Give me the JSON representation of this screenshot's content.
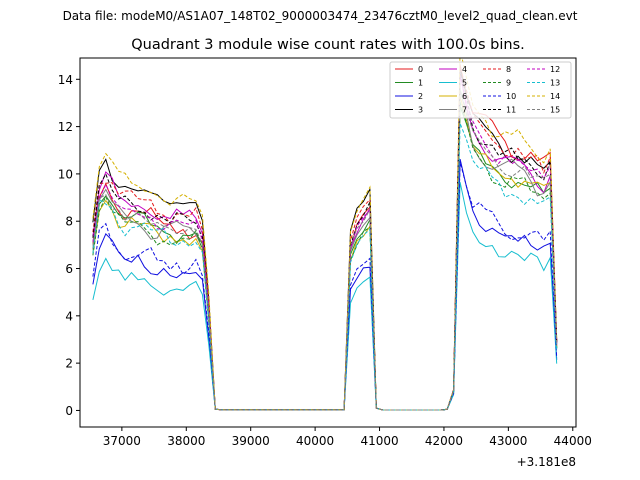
{
  "header": {
    "data_file": "Data file: modeM0/AS1A07_148T02_9000003474_23476cztM0_level2_quad_clean.evt"
  },
  "chart_data": {
    "type": "line",
    "title": "Quadrant 3 module wise count rates with 100.0s bins.",
    "xlabel": "",
    "ylabel": "",
    "x_offset_label": "+3.181e8",
    "xlim": [
      36350,
      44050
    ],
    "ylim": [
      -0.7,
      14.9
    ],
    "xticks": [
      37000,
      38000,
      39000,
      40000,
      41000,
      42000,
      43000,
      44000
    ],
    "yticks": [
      0,
      2,
      4,
      6,
      8,
      10,
      12,
      14
    ],
    "legend_position": "top-right",
    "segments": [
      {
        "start": 36550,
        "end": 38450
      },
      {
        "start": 40550,
        "end": 40950
      },
      {
        "start": 42050,
        "end": 43750
      }
    ],
    "series": [
      {
        "name": "0",
        "color": "#e41a1c",
        "style": "solid",
        "seg1": 8.6,
        "seg2": 8.2,
        "seg3": 11.8,
        "amp": 0.55,
        "ph": 0.3
      },
      {
        "name": "1",
        "color": "#228b22",
        "style": "solid",
        "seg1": 8.3,
        "seg2": 7.6,
        "seg3": 10.2,
        "amp": 0.5,
        "ph": 1.1
      },
      {
        "name": "2",
        "color": "#1010e0",
        "style": "solid",
        "seg1": 6.5,
        "seg2": 5.9,
        "seg3": 7.7,
        "amp": 0.4,
        "ph": 2.0
      },
      {
        "name": "3",
        "color": "#000000",
        "style": "solid",
        "seg1": 9.7,
        "seg2": 8.9,
        "seg3": 11.5,
        "amp": 0.45,
        "ph": 0.7
      },
      {
        "name": "4",
        "color": "#c000c0",
        "style": "solid",
        "seg1": 9.0,
        "seg2": 8.0,
        "seg3": 10.9,
        "amp": 0.5,
        "ph": 2.6
      },
      {
        "name": "5",
        "color": "#17becf",
        "style": "solid",
        "seg1": 5.7,
        "seg2": 5.3,
        "seg3": 6.9,
        "amp": 0.35,
        "ph": 1.7
      },
      {
        "name": "6",
        "color": "#d4b000",
        "style": "solid",
        "seg1": 8.1,
        "seg2": 7.4,
        "seg3": 10.4,
        "amp": 0.5,
        "ph": 0.9
      },
      {
        "name": "7",
        "color": "#808080",
        "style": "solid",
        "seg1": 8.3,
        "seg2": 7.8,
        "seg3": 10.6,
        "amp": 0.5,
        "ph": 3.1
      },
      {
        "name": "8",
        "color": "#e41a1c",
        "style": "dashed",
        "seg1": 9.2,
        "seg2": 8.6,
        "seg3": 11.6,
        "amp": 0.55,
        "ph": 1.4
      },
      {
        "name": "9",
        "color": "#228b22",
        "style": "dashed",
        "seg1": 8.0,
        "seg2": 7.5,
        "seg3": 10.1,
        "amp": 0.5,
        "ph": 2.2
      },
      {
        "name": "10",
        "color": "#1010e0",
        "style": "dashed",
        "seg1": 6.9,
        "seg2": 6.2,
        "seg3": 8.1,
        "amp": 0.45,
        "ph": 0.5
      },
      {
        "name": "11",
        "color": "#000000",
        "style": "dashed",
        "seg1": 8.9,
        "seg2": 8.3,
        "seg3": 11.3,
        "amp": 0.45,
        "ph": 2.9
      },
      {
        "name": "12",
        "color": "#c000c0",
        "style": "dashed",
        "seg1": 8.7,
        "seg2": 8.1,
        "seg3": 11.1,
        "amp": 0.5,
        "ph": 1.9
      },
      {
        "name": "13",
        "color": "#17becf",
        "style": "dashed",
        "seg1": 8.1,
        "seg2": 7.4,
        "seg3": 9.7,
        "amp": 0.5,
        "ph": 0.2
      },
      {
        "name": "14",
        "color": "#d4b000",
        "style": "dashed",
        "seg1": 9.9,
        "seg2": 9.0,
        "seg3": 12.1,
        "amp": 0.55,
        "ph": 2.4
      },
      {
        "name": "15",
        "color": "#808080",
        "style": "dashed",
        "seg1": 8.5,
        "seg2": 8.0,
        "seg3": 10.8,
        "amp": 0.5,
        "ph": 1.2
      }
    ]
  }
}
